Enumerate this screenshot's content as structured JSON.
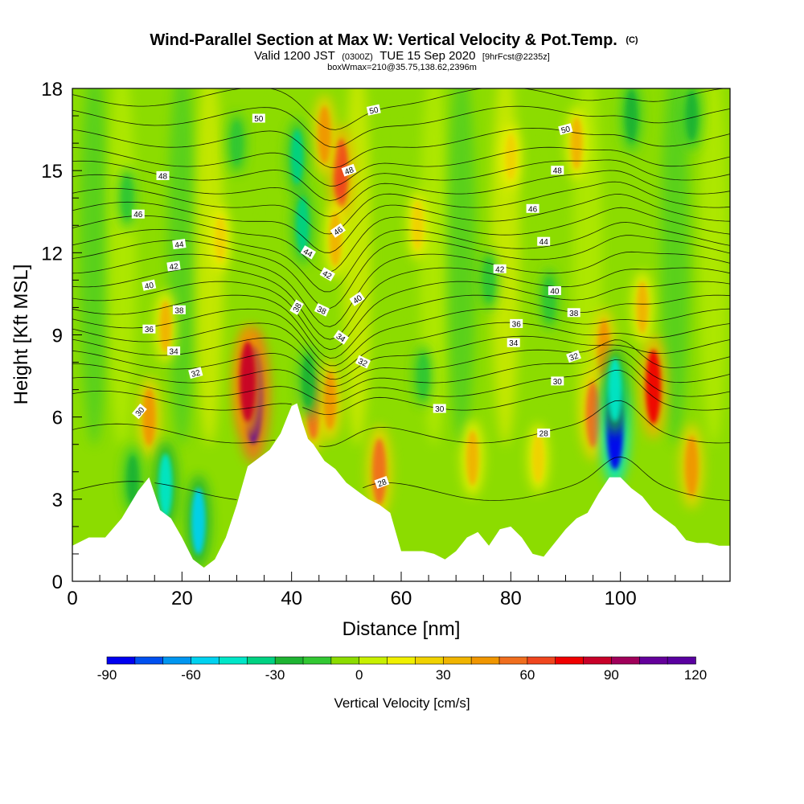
{
  "chart_data": {
    "type": "heatmap",
    "title": "Wind-Parallel Section at Max W: Vertical Velocity & Pot.Temp.",
    "title_unit": "(C)",
    "subtitle_prefix": "Valid 1200 JST",
    "subtitle_z": "(0300Z)",
    "subtitle_date": "TUE 15 Sep 2020",
    "subtitle_fcst": "[9hrFcst@2235z]",
    "subtitle2": "boxWmax=210@35.75,138.62,2396m",
    "xlabel": "Distance [nm]",
    "ylabel": "Height [Kft MSL]",
    "xlim": [
      0,
      120
    ],
    "ylim": [
      0,
      18
    ],
    "x_ticks": [
      0,
      20,
      40,
      60,
      80,
      100
    ],
    "x_tick_labels": [
      "0",
      "20",
      "40",
      "60",
      "80",
      "100"
    ],
    "y_ticks": [
      0,
      3,
      6,
      9,
      12,
      15,
      18
    ],
    "y_tick_labels": [
      "0",
      "3",
      "6",
      "9",
      "12",
      "15",
      "18"
    ],
    "colorbar": {
      "label": "Vertical Velocity [cm/s]",
      "min": -90,
      "max": 120,
      "step": 10,
      "ticks": [
        -90,
        -60,
        -30,
        0,
        30,
        60,
        90,
        120
      ],
      "tick_labels": [
        "-90",
        "-60",
        "-30",
        "0",
        "30",
        "60",
        "90",
        "120"
      ],
      "colors": [
        "#0000f0",
        "#0050f0",
        "#0096f0",
        "#00d2f0",
        "#00e6c8",
        "#00d282",
        "#1eb432",
        "#32c832",
        "#8cdc00",
        "#c8f000",
        "#f0f000",
        "#f0d200",
        "#f0b400",
        "#f09600",
        "#f06e1e",
        "#f0461e",
        "#f00000",
        "#c80028",
        "#a0005a",
        "#64009b",
        "#5a00a0"
      ]
    },
    "terrain": {
      "x": [
        0,
        3,
        6,
        9,
        12,
        14,
        16,
        18,
        20,
        22,
        24,
        26,
        28,
        30,
        32,
        34,
        36,
        38,
        40,
        41,
        42,
        43,
        44,
        46,
        48,
        50,
        52,
        54,
        56,
        58,
        60,
        62,
        64,
        66,
        68,
        70,
        72,
        74,
        76,
        78,
        80,
        82,
        84,
        86,
        88,
        90,
        92,
        94,
        96,
        98,
        100,
        102,
        104,
        106,
        108,
        110,
        112,
        114,
        116,
        118,
        120
      ],
      "height": [
        1.3,
        1.6,
        1.6,
        2.3,
        3.3,
        3.8,
        2.6,
        2.3,
        1.6,
        0.8,
        0.5,
        0.8,
        1.6,
        2.8,
        4.2,
        4.5,
        4.8,
        5.4,
        6.4,
        6.5,
        5.8,
        5.2,
        5.0,
        4.4,
        4.1,
        3.6,
        3.3,
        3.0,
        2.8,
        2.5,
        1.1,
        1.1,
        1.1,
        1.0,
        0.8,
        1.1,
        1.6,
        1.8,
        1.3,
        1.9,
        2.0,
        1.6,
        1.0,
        0.9,
        1.4,
        1.9,
        2.3,
        2.5,
        3.2,
        3.8,
        3.8,
        3.4,
        3.1,
        2.6,
        2.3,
        2.0,
        1.5,
        1.4,
        1.4,
        1.3,
        1.3
      ]
    },
    "w_cells": [
      {
        "x": 33,
        "y": 6.8,
        "value": 110
      },
      {
        "x": 32,
        "y": 7.3,
        "value": 80
      },
      {
        "x": 44,
        "y": 6.4,
        "value": 55
      },
      {
        "x": 47,
        "y": 6.6,
        "value": 40
      },
      {
        "x": 49,
        "y": 14.9,
        "value": 60
      },
      {
        "x": 48,
        "y": 12.5,
        "value": 35
      },
      {
        "x": 56,
        "y": 4.0,
        "value": 55
      },
      {
        "x": 46,
        "y": 16.3,
        "value": 40
      },
      {
        "x": 106,
        "y": 7.1,
        "value": 70
      },
      {
        "x": 95,
        "y": 6.1,
        "value": 55
      },
      {
        "x": 97,
        "y": 8.5,
        "value": 40
      },
      {
        "x": 92,
        "y": 16.0,
        "value": 30
      },
      {
        "x": 113,
        "y": 4.2,
        "value": 45
      },
      {
        "x": 73,
        "y": 4.5,
        "value": 35
      },
      {
        "x": 85,
        "y": 4.5,
        "value": 25
      },
      {
        "x": 104,
        "y": 10.0,
        "value": 30
      },
      {
        "x": 14,
        "y": 6.0,
        "value": 40
      },
      {
        "x": 17,
        "y": 9.3,
        "value": 30
      },
      {
        "x": 63,
        "y": 13.0,
        "value": 25
      },
      {
        "x": 80,
        "y": 15.5,
        "value": 20
      },
      {
        "x": 27,
        "y": 12.5,
        "value": 20
      },
      {
        "x": 99,
        "y": 5.6,
        "value": -85
      },
      {
        "x": 99,
        "y": 7.0,
        "value": -50
      },
      {
        "x": 17,
        "y": 3.5,
        "value": -50
      },
      {
        "x": 23,
        "y": 2.2,
        "value": -55
      },
      {
        "x": 42,
        "y": 13.0,
        "value": -40
      },
      {
        "x": 41,
        "y": 15.5,
        "value": -35
      },
      {
        "x": 43,
        "y": 7.3,
        "value": -30
      },
      {
        "x": 102,
        "y": 17.0,
        "value": -30
      },
      {
        "x": 113,
        "y": 17.0,
        "value": -25
      },
      {
        "x": 11,
        "y": 3.7,
        "value": -25
      },
      {
        "x": 64,
        "y": 7.5,
        "value": -15
      },
      {
        "x": 76,
        "y": 11.0,
        "value": -15
      },
      {
        "x": 87,
        "y": 10.3,
        "value": -15
      },
      {
        "x": 10,
        "y": 14.0,
        "value": -15
      },
      {
        "x": 30,
        "y": 16.0,
        "value": -15
      }
    ],
    "isentropes": {
      "levels": [
        26,
        28,
        30,
        31,
        32,
        33,
        34,
        35,
        36,
        37,
        38,
        39,
        40,
        41,
        42,
        43,
        44,
        45,
        46,
        47,
        48,
        49,
        50,
        51
      ],
      "base_height": [
        3.3,
        5.4,
        6.6,
        7.1,
        7.6,
        8.1,
        8.6,
        9.1,
        9.6,
        10.1,
        10.6,
        11.1,
        11.6,
        12.1,
        12.5,
        13.0,
        13.5,
        14.0,
        14.5,
        15.0,
        15.5,
        16.2,
        17.0,
        17.7
      ]
    },
    "contour_labels": [
      {
        "text": "50",
        "x": 34.0,
        "y": 16.9,
        "angle": 0
      },
      {
        "text": "48",
        "x": 16.5,
        "y": 14.8,
        "angle": 0
      },
      {
        "text": "46",
        "x": 12.0,
        "y": 13.4,
        "angle": 0
      },
      {
        "text": "44",
        "x": 19.5,
        "y": 12.3,
        "angle": -8
      },
      {
        "text": "42",
        "x": 18.5,
        "y": 11.5,
        "angle": -8
      },
      {
        "text": "40",
        "x": 14.0,
        "y": 10.8,
        "angle": -12
      },
      {
        "text": "38",
        "x": 19.5,
        "y": 9.9,
        "angle": 0
      },
      {
        "text": "36",
        "x": 14.0,
        "y": 9.2,
        "angle": 0
      },
      {
        "text": "34",
        "x": 18.5,
        "y": 8.4,
        "angle": 0
      },
      {
        "text": "32",
        "x": 22.5,
        "y": 7.6,
        "angle": -15
      },
      {
        "text": "30",
        "x": 12.3,
        "y": 6.2,
        "angle": -50
      },
      {
        "text": "50",
        "x": 55.0,
        "y": 17.2,
        "angle": -12
      },
      {
        "text": "48",
        "x": 50.5,
        "y": 15.0,
        "angle": -20
      },
      {
        "text": "46",
        "x": 48.5,
        "y": 12.8,
        "angle": -35
      },
      {
        "text": "44",
        "x": 43.0,
        "y": 12.0,
        "angle": 30
      },
      {
        "text": "42",
        "x": 46.5,
        "y": 11.2,
        "angle": 30
      },
      {
        "text": "40",
        "x": 52.0,
        "y": 10.3,
        "angle": -35
      },
      {
        "text": "38",
        "x": 41.0,
        "y": 10.0,
        "angle": -60
      },
      {
        "text": "38",
        "x": 45.5,
        "y": 9.9,
        "angle": 25
      },
      {
        "text": "34",
        "x": 49.0,
        "y": 8.9,
        "angle": 35
      },
      {
        "text": "32",
        "x": 53.0,
        "y": 8.0,
        "angle": 25
      },
      {
        "text": "30",
        "x": 67.0,
        "y": 6.3,
        "angle": 0
      },
      {
        "text": "28",
        "x": 56.5,
        "y": 3.6,
        "angle": -20
      },
      {
        "text": "50",
        "x": 90.0,
        "y": 16.5,
        "angle": -15
      },
      {
        "text": "48",
        "x": 88.5,
        "y": 15.0,
        "angle": 0
      },
      {
        "text": "46",
        "x": 84.0,
        "y": 13.6,
        "angle": 0
      },
      {
        "text": "44",
        "x": 86.0,
        "y": 12.4,
        "angle": 0
      },
      {
        "text": "42",
        "x": 78.0,
        "y": 11.4,
        "angle": 0
      },
      {
        "text": "40",
        "x": 88.0,
        "y": 10.6,
        "angle": 0
      },
      {
        "text": "38",
        "x": 91.5,
        "y": 9.8,
        "angle": 0
      },
      {
        "text": "36",
        "x": 81.0,
        "y": 9.4,
        "angle": 0
      },
      {
        "text": "34",
        "x": 80.5,
        "y": 8.7,
        "angle": 0
      },
      {
        "text": "32",
        "x": 91.5,
        "y": 8.2,
        "angle": -20
      },
      {
        "text": "30",
        "x": 88.5,
        "y": 7.3,
        "angle": 0
      },
      {
        "text": "28",
        "x": 86.0,
        "y": 5.4,
        "angle": 0
      }
    ]
  }
}
